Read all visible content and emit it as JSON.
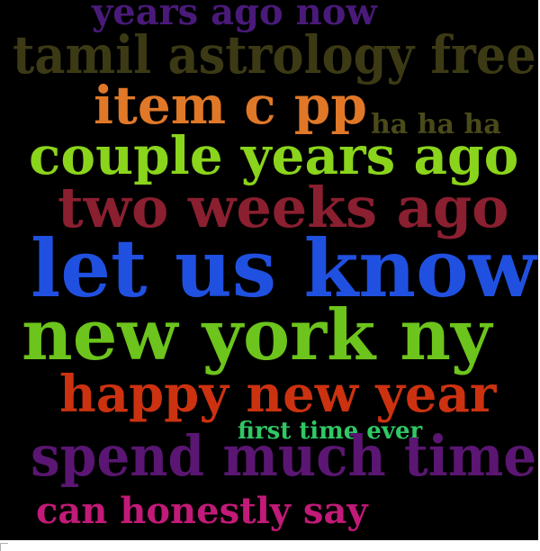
{
  "word_cloud": {
    "background_color": "#000000",
    "words": [
      {
        "key": "w01",
        "text": "years ago now",
        "color": "#4a1a7a"
      },
      {
        "key": "w02",
        "text": "tamil astrology free",
        "color": "#3c3a14"
      },
      {
        "key": "w03",
        "text": "item c pp",
        "color": "#e07828"
      },
      {
        "key": "w04",
        "text": "ha ha ha",
        "color": "#4a4a1a"
      },
      {
        "key": "w05",
        "text": "couple years ago",
        "color": "#8ad41c"
      },
      {
        "key": "w06",
        "text": "two weeks ago",
        "color": "#8a1f30"
      },
      {
        "key": "w07",
        "text": "let us know",
        "color": "#2050e0"
      },
      {
        "key": "w08",
        "text": "new york ny",
        "color": "#6cc41c"
      },
      {
        "key": "w09",
        "text": "happy new year",
        "color": "#cc3210"
      },
      {
        "key": "w10",
        "text": "first time ever",
        "color": "#30c864"
      },
      {
        "key": "w11",
        "text": "spend much time",
        "color": "#5a1672"
      },
      {
        "key": "w12",
        "text": "can honestly say",
        "color": "#c21a78"
      }
    ]
  }
}
